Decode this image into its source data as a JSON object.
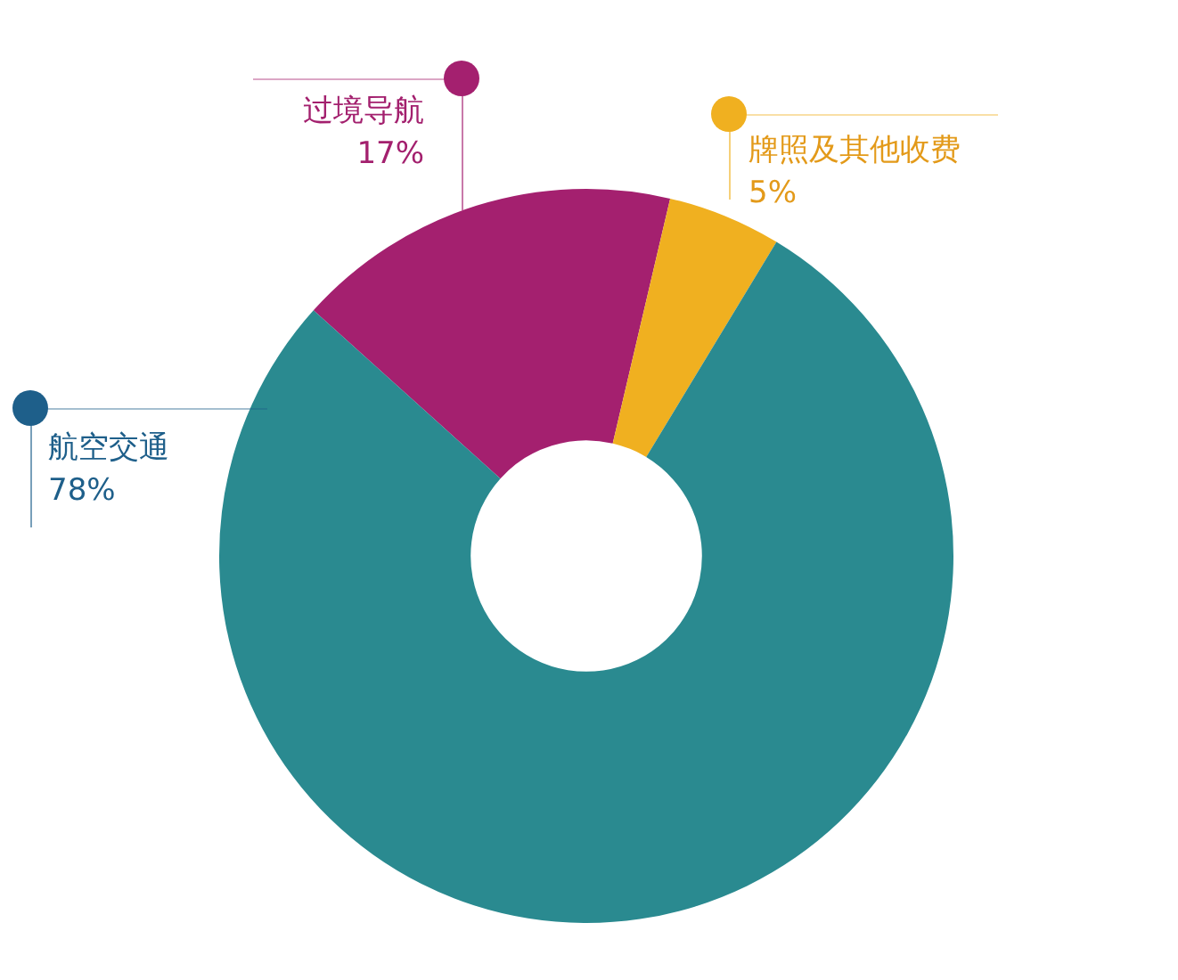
{
  "chart_data": {
    "type": "donut",
    "categories": [
      "过境导航",
      "牌照及其他收费",
      "航空交通"
    ],
    "values": [
      17,
      5,
      78
    ],
    "value_labels": [
      "17%",
      "5%",
      "78%"
    ],
    "colors": [
      "#a4206f",
      "#f0b020",
      "#2a8a90"
    ]
  }
}
